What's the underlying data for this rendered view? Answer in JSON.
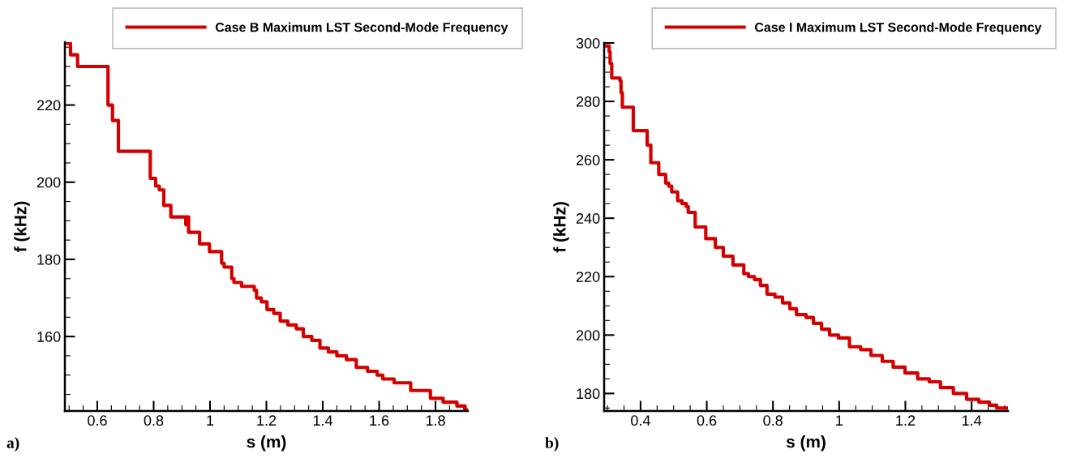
{
  "chart_data": [
    {
      "type": "step",
      "xlabel": "s (m)",
      "ylabel": "f (kHz)",
      "annotations": [
        "a)"
      ],
      "legend": "top right",
      "grid": false,
      "marker": "none",
      "line_style": "solid",
      "xlim": [
        0.485,
        1.915
      ],
      "ylim": [
        140.7,
        236.3
      ],
      "xticks": [
        0.6,
        0.8,
        1,
        1.2,
        1.4,
        1.6,
        1.8
      ],
      "yticks": [
        160,
        180,
        200,
        220
      ],
      "series": [
        {
          "name": "Case B Maximum LST Second-Mode Frequency",
          "color": "#d40000",
          "x": [
            0.485,
            0.505,
            0.53,
            0.638,
            0.654,
            0.675,
            0.788,
            0.807,
            0.82,
            0.836,
            0.861,
            0.914,
            0.918,
            0.924,
            0.963,
            0.998,
            1.041,
            1.05,
            1.077,
            1.085,
            1.112,
            1.157,
            1.165,
            1.182,
            1.202,
            1.226,
            1.249,
            1.276,
            1.306,
            1.331,
            1.361,
            1.39,
            1.42,
            1.45,
            1.484,
            1.519,
            1.559,
            1.593,
            1.613,
            1.653,
            1.712,
            1.782,
            1.827,
            1.876,
            1.905,
            1.915
          ],
          "values": [
            236,
            233,
            230,
            220,
            216,
            208,
            201,
            199,
            198,
            194,
            191,
            189,
            191,
            187,
            184,
            182,
            179,
            178,
            175,
            174,
            173,
            172,
            170,
            169,
            167,
            166,
            164,
            163,
            162,
            160,
            159,
            157,
            156,
            155,
            154,
            152,
            151,
            150,
            149,
            148,
            146,
            144,
            143,
            142,
            141,
            141
          ]
        }
      ]
    },
    {
      "type": "step",
      "xlabel": "s (m)",
      "ylabel": "f (kHz)",
      "annotations": [
        "b)"
      ],
      "legend": "top right",
      "grid": false,
      "marker": "none",
      "line_style": "solid",
      "xlim": [
        0.29,
        1.51
      ],
      "ylim": [
        174,
        300
      ],
      "xticks": [
        0.4,
        0.6,
        0.8,
        1,
        1.2,
        1.4
      ],
      "yticks": [
        180,
        200,
        220,
        240,
        260,
        280,
        300
      ],
      "series": [
        {
          "name": "Case I Maximum LST Second-Mode Frequency",
          "color": "#d40000",
          "x": [
            0.296,
            0.305,
            0.308,
            0.313,
            0.338,
            0.341,
            0.345,
            0.378,
            0.42,
            0.431,
            0.455,
            0.476,
            0.485,
            0.494,
            0.512,
            0.525,
            0.538,
            0.544,
            0.565,
            0.597,
            0.626,
            0.65,
            0.679,
            0.712,
            0.726,
            0.744,
            0.762,
            0.782,
            0.806,
            0.829,
            0.851,
            0.871,
            0.9,
            0.922,
            0.947,
            0.971,
            0.998,
            1.031,
            1.065,
            1.096,
            1.13,
            1.163,
            1.199,
            1.237,
            1.272,
            1.306,
            1.345,
            1.385,
            1.422,
            1.454,
            1.476,
            1.51
          ],
          "values": [
            299,
            297,
            293,
            288,
            287,
            283,
            278,
            270,
            265,
            259,
            255,
            252,
            251,
            249,
            246,
            245,
            244,
            242,
            237,
            233,
            230,
            227,
            224,
            221,
            220,
            219,
            217,
            214,
            213,
            211,
            209,
            207,
            206,
            204,
            202,
            200,
            199,
            196,
            195,
            193,
            191,
            189,
            187,
            185,
            184,
            182,
            180,
            178,
            177,
            176,
            175,
            175
          ]
        }
      ]
    }
  ]
}
